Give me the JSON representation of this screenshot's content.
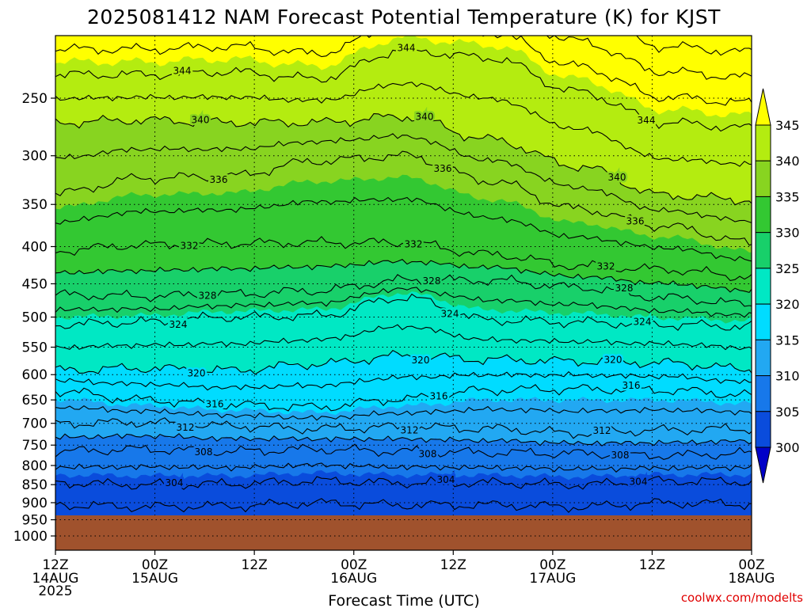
{
  "title": "2025081412 NAM Forecast Potential Temperature (K) for KJST",
  "credit": "coolwx.com/modelts",
  "chart_data": {
    "type": "heatmap",
    "title": "2025081412 NAM Forecast Potential Temperature (K) for KJST",
    "xlabel": "Forecast Time (UTC)",
    "ylabel": "",
    "x_ticks": [
      {
        "label": "12Z",
        "sub": [
          "14AUG",
          "2025"
        ]
      },
      {
        "label": "00Z",
        "sub": [
          "15AUG"
        ]
      },
      {
        "label": "12Z",
        "sub": []
      },
      {
        "label": "00Z",
        "sub": [
          "16AUG"
        ]
      },
      {
        "label": "12Z",
        "sub": []
      },
      {
        "label": "00Z",
        "sub": [
          "17AUG"
        ]
      },
      {
        "label": "12Z",
        "sub": []
      },
      {
        "label": "00Z",
        "sub": [
          "18AUG"
        ]
      }
    ],
    "y_ticks": [
      "250",
      "300",
      "350",
      "400",
      "450",
      "500",
      "550",
      "600",
      "650",
      "700",
      "750",
      "800",
      "850",
      "900",
      "950",
      "1000"
    ],
    "y_axis": "pressure (hPa), log scale, inverted",
    "ylim": [
      1050,
      200
    ],
    "surface_pressure": 945,
    "colorbar": {
      "ticks": [
        "345",
        "340",
        "335",
        "330",
        "325",
        "320",
        "315",
        "310",
        "305",
        "300"
      ],
      "levels": [
        300,
        305,
        310,
        315,
        320,
        325,
        330,
        335,
        340,
        345
      ],
      "colors": [
        "#0000c8",
        "#0a4cdc",
        "#1778ea",
        "#22a8f2",
        "#00dcff",
        "#00e8c4",
        "#18d06a",
        "#33c832",
        "#88d420",
        "#b4ec10",
        "#ffff00"
      ]
    },
    "isentropes": [
      {
        "value": 304,
        "pressure": [
          845,
          850,
          848,
          840,
          845,
          845,
          850,
          840,
          842
        ]
      },
      {
        "value": 308,
        "pressure": [
          765,
          760,
          765,
          760,
          765,
          768,
          770,
          775,
          770
        ]
      },
      {
        "value": 312,
        "pressure": [
          700,
          698,
          706,
          712,
          708,
          712,
          722,
          715,
          712
        ]
      },
      {
        "value": 316,
        "pressure": [
          632,
          650,
          660,
          665,
          648,
          630,
          628,
          630,
          640
        ]
      },
      {
        "value": 320,
        "pressure": [
          592,
          588,
          592,
          580,
          565,
          572,
          575,
          578,
          590
        ]
      },
      {
        "value": 324,
        "pressure": [
          512,
          508,
          500,
          498,
          470,
          505,
          508,
          512,
          515
        ]
      },
      {
        "value": 328,
        "pressure": [
          466,
          468,
          465,
          460,
          445,
          445,
          455,
          470,
          480
        ]
      },
      {
        "value": 332,
        "pressure": [
          405,
          398,
          396,
          395,
          395,
          410,
          425,
          430,
          440
        ]
      },
      {
        "value": 336,
        "pressure": [
          338,
          322,
          320,
          305,
          300,
          325,
          355,
          375,
          395
        ]
      },
      {
        "value": 340,
        "pressure": [
          270,
          268,
          270,
          270,
          265,
          285,
          310,
          340,
          345
        ]
      },
      {
        "value": 344,
        "pressure": [
          232,
          232,
          230,
          235,
          215,
          220,
          245,
          270,
          275
        ]
      }
    ],
    "grid": true,
    "legend": "colorbar-right"
  }
}
